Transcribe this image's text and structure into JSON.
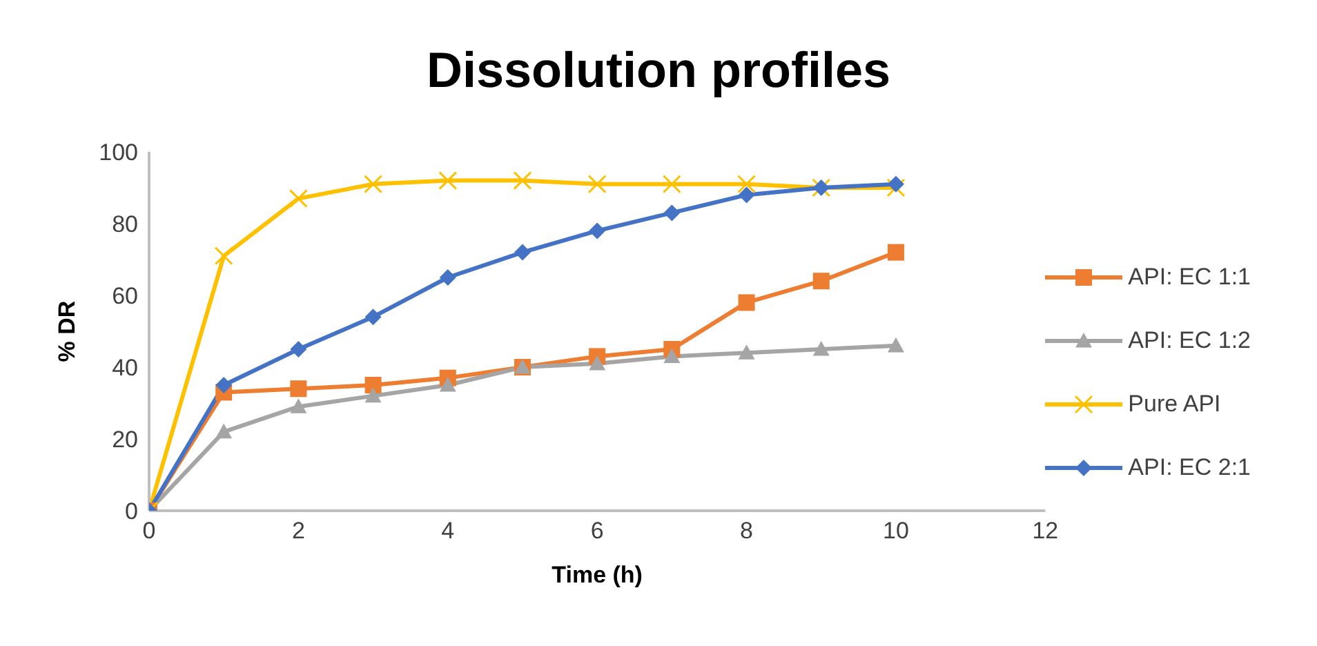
{
  "chart_data": {
    "type": "line",
    "title": "Dissolution profiles",
    "xlabel": "Time (h)",
    "ylabel": "% DR",
    "x": [
      0,
      1,
      2,
      3,
      4,
      5,
      6,
      7,
      8,
      9,
      10
    ],
    "series": [
      {
        "name": "API: EC 1:1",
        "color": "#ed7d31",
        "marker": "square",
        "values": [
          0,
          33,
          34,
          35,
          37,
          40,
          43,
          45,
          58,
          64,
          72
        ]
      },
      {
        "name": "API: EC 1:2",
        "color": "#a5a5a5",
        "marker": "triangle",
        "values": [
          0,
          22,
          29,
          32,
          35,
          40,
          41,
          43,
          44,
          45,
          46
        ]
      },
      {
        "name": "Pure API",
        "color": "#ffc000",
        "marker": "cross",
        "values": [
          0,
          71,
          87,
          91,
          92,
          92,
          91,
          91,
          91,
          90,
          90
        ]
      },
      {
        "name": "API: EC 2:1",
        "color": "#4472c4",
        "marker": "diamond",
        "values": [
          0,
          35,
          45,
          54,
          65,
          72,
          78,
          83,
          88,
          90,
          91
        ]
      }
    ],
    "xlim": [
      0,
      12
    ],
    "xticks": [
      0,
      2,
      4,
      6,
      8,
      10,
      12
    ],
    "ylim": [
      0,
      100
    ],
    "yticks": [
      0,
      20,
      40,
      60,
      80,
      100
    ],
    "grid": false,
    "legend": "right",
    "line_style": "solid"
  }
}
